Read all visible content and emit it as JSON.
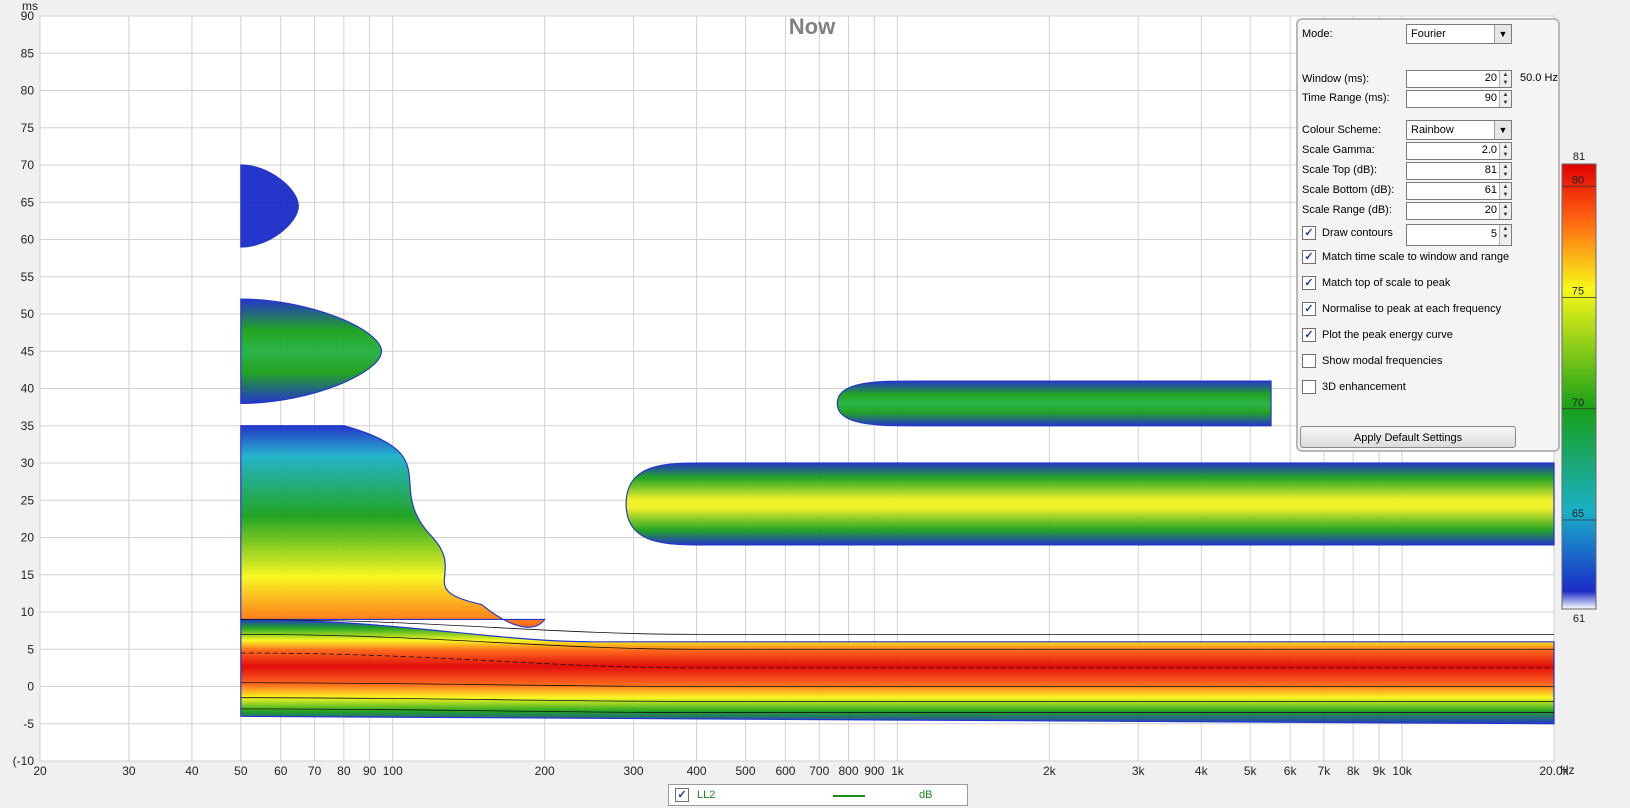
{
  "chart_data": {
    "type": "heatmap",
    "title": "Now",
    "xlabel": "Hz",
    "ylabel": "ms",
    "x_scale": "log",
    "xlim": [
      20,
      20000
    ],
    "ylim": [
      -10,
      90
    ],
    "x_ticks": [
      20,
      30,
      40,
      50,
      60,
      70,
      80,
      90,
      100,
      200,
      300,
      400,
      500,
      600,
      700,
      800,
      900,
      1000,
      2000,
      3000,
      4000,
      5000,
      6000,
      7000,
      8000,
      9000,
      10000,
      20000
    ],
    "x_tick_labels": [
      "20",
      "30",
      "40",
      "50",
      "60",
      "70",
      "80",
      "90",
      "100",
      "200",
      "300",
      "400",
      "500",
      "600",
      "700",
      "800",
      "900",
      "1k",
      "2k",
      "3k",
      "4k",
      "5k",
      "6k",
      "7k",
      "8k",
      "9k",
      "10k",
      "20.0k"
    ],
    "y_ticks": [
      90,
      85,
      80,
      75,
      70,
      65,
      60,
      55,
      50,
      45,
      40,
      35,
      30,
      25,
      20,
      15,
      10,
      5,
      0,
      -5,
      -10
    ],
    "y_tick_labels": [
      "90",
      "85",
      "80",
      "75",
      "70",
      "65",
      "60",
      "55",
      "50",
      "45",
      "40",
      "35",
      "30",
      "25",
      "20",
      "15",
      "10",
      "5",
      "0",
      "-5",
      "(-10"
    ],
    "grid": true,
    "colorbar": {
      "min": 61,
      "max": 81,
      "ticks": [
        80,
        75,
        70,
        65
      ],
      "top_label": "81",
      "bottom_label": "61",
      "colors": [
        "#ffffff",
        "#2030c0",
        "#20b0c0",
        "#20a020",
        "#f8f820",
        "#ff6010",
        "#e00000"
      ]
    },
    "regions": [
      {
        "name": "main-decay-band",
        "f_range": [
          50,
          20000
        ],
        "t_range": [
          -4,
          9
        ],
        "peak_db": 81
      },
      {
        "name": "low-freq-tail",
        "f_range": [
          50,
          200
        ],
        "t_range": [
          9,
          35
        ],
        "peak_db": 76
      },
      {
        "name": "low-freq-blob-45ms",
        "f_range": [
          50,
          95
        ],
        "t_range": [
          38,
          52
        ],
        "peak_db": 71
      },
      {
        "name": "low-freq-blob-65ms",
        "f_range": [
          50,
          65
        ],
        "t_range": [
          59,
          70
        ],
        "peak_db": 63
      },
      {
        "name": "mid-high-reflection-25ms",
        "f_range": [
          290,
          20000
        ],
        "t_range": [
          19,
          30
        ],
        "peak_db": 77
      },
      {
        "name": "high-reflection-38ms",
        "f_range": [
          760,
          5500
        ],
        "t_range": [
          35,
          41
        ],
        "peak_db": 68
      }
    ]
  },
  "settings": {
    "mode_label": "Mode:",
    "mode_value": "Fourier",
    "window_label": "Window (ms):",
    "window_value": "20",
    "window_extra": "50.0 Hz",
    "time_range_label": "Time Range (ms):",
    "time_range_value": "90",
    "colour_scheme_label": "Colour Scheme:",
    "colour_scheme_value": "Rainbow",
    "scale_gamma_label": "Scale Gamma:",
    "scale_gamma_value": "2.0",
    "scale_top_label": "Scale Top (dB):",
    "scale_top_value": "81",
    "scale_bottom_label": "Scale Bottom (dB):",
    "scale_bottom_value": "61",
    "scale_range_label": "Scale Range (dB):",
    "scale_range_value": "20",
    "draw_contours_label": "Draw contours",
    "draw_contours_value": "5",
    "checkboxes": [
      {
        "label": "Match time scale to window and range",
        "checked": true
      },
      {
        "label": "Match top of scale to peak",
        "checked": true
      },
      {
        "label": "Normalise to peak at each frequency",
        "checked": true
      },
      {
        "label": "Plot the peak energy curve",
        "checked": true
      },
      {
        "label": "Show modal frequencies",
        "checked": false
      },
      {
        "label": "3D enhancement",
        "checked": false
      }
    ],
    "apply_button": "Apply Default Settings"
  },
  "legend": {
    "name": "LL2",
    "unit": "dB",
    "checked": true,
    "color": "#1a8a1a"
  }
}
